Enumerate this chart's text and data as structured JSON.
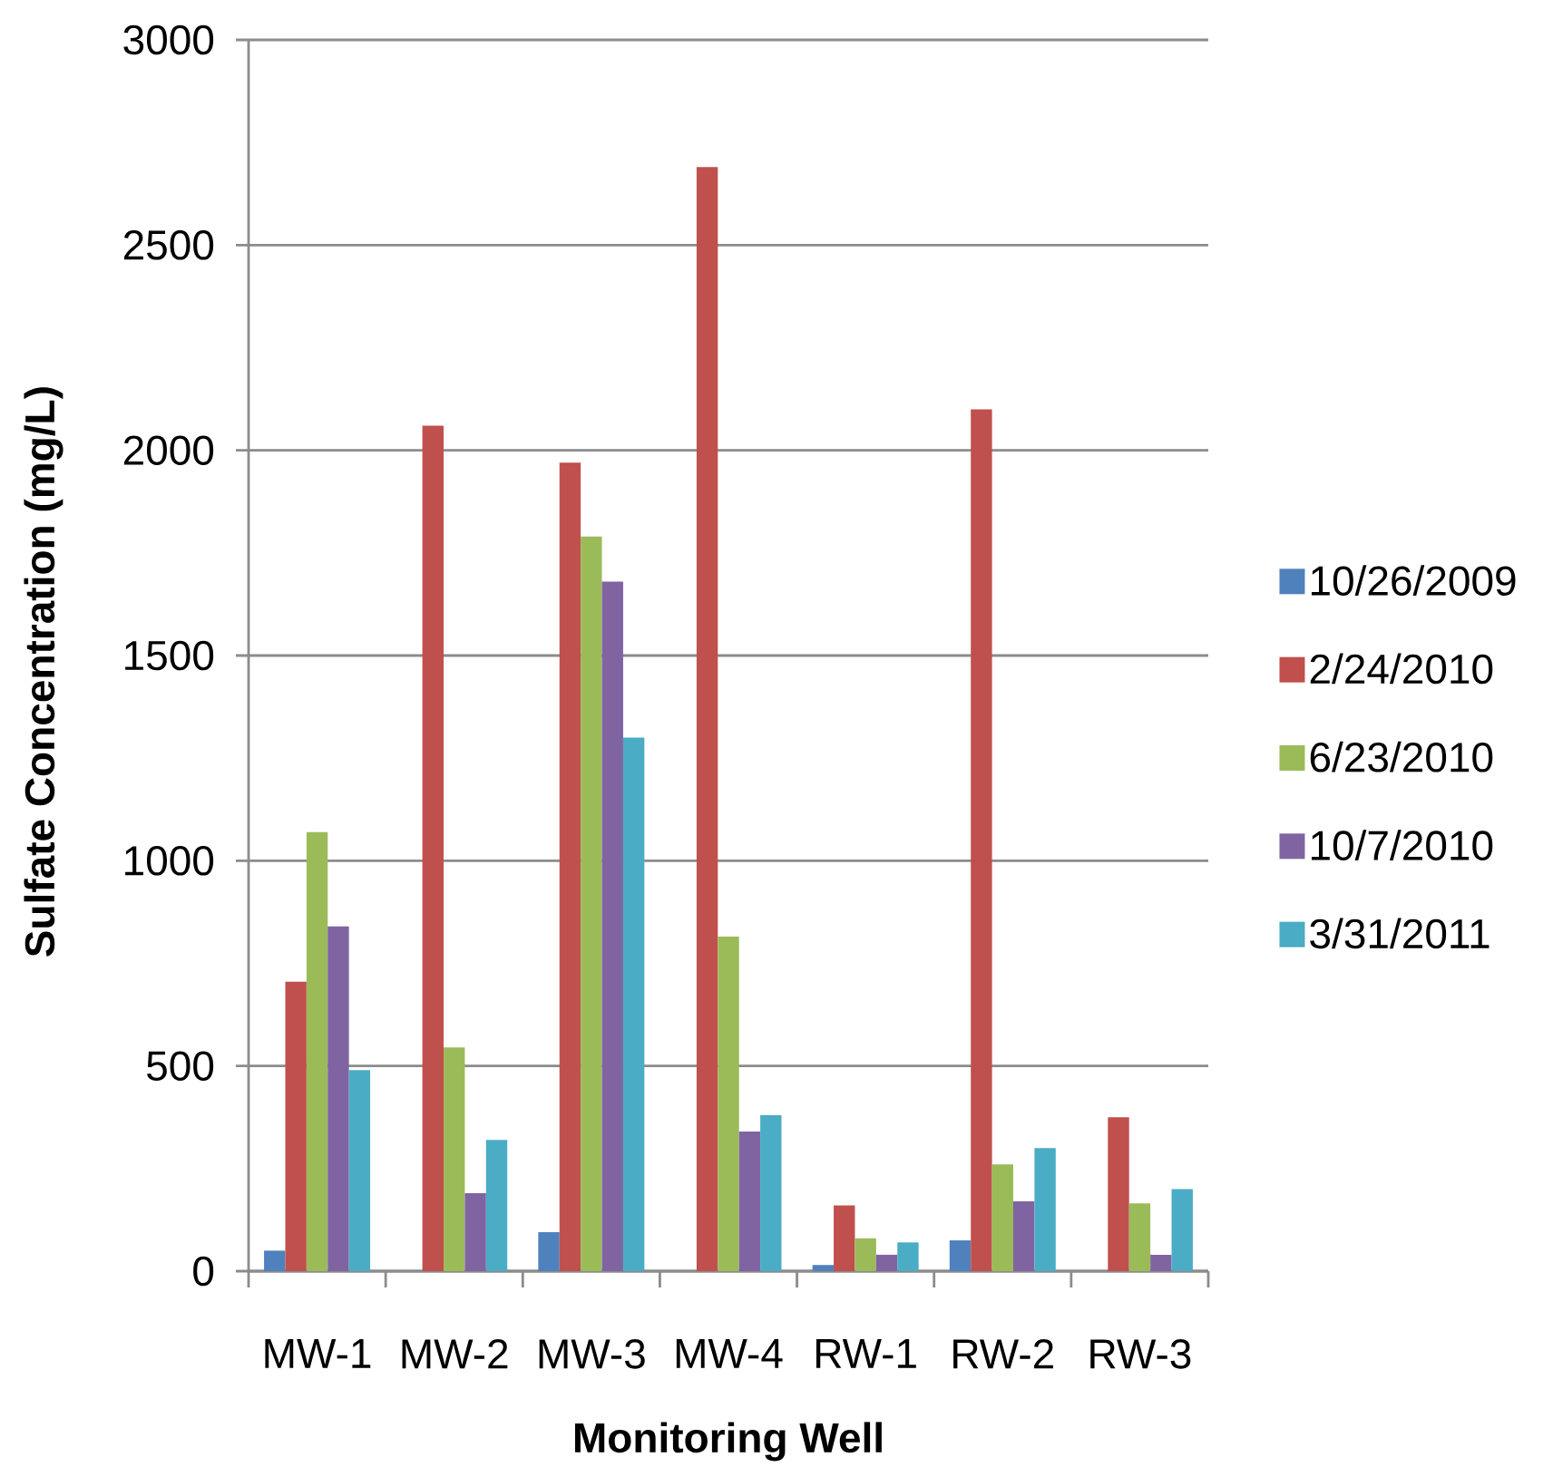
{
  "chart_data": {
    "type": "bar",
    "xlabel": "Monitoring Well",
    "ylabel": "Sulfate Concentration (mg/L)",
    "categories": [
      "MW-1",
      "MW-2",
      "MW-3",
      "MW-4",
      "RW-1",
      "RW-2",
      "RW-3"
    ],
    "series": [
      {
        "name": "10/26/2009",
        "color": "#4f81bd",
        "values": [
          50,
          null,
          95,
          null,
          15,
          75,
          null
        ]
      },
      {
        "name": "2/24/2010",
        "color": "#c0504d",
        "values": [
          705,
          2060,
          1970,
          2690,
          160,
          2100,
          375
        ]
      },
      {
        "name": "6/23/2010",
        "color": "#9bbb59",
        "values": [
          1070,
          545,
          1790,
          815,
          80,
          260,
          165
        ]
      },
      {
        "name": "10/7/2010",
        "color": "#8064a2",
        "values": [
          840,
          190,
          1680,
          340,
          40,
          170,
          40
        ]
      },
      {
        "name": "3/31/2011",
        "color": "#4bacc6",
        "values": [
          490,
          320,
          1300,
          380,
          70,
          300,
          200
        ]
      }
    ],
    "ylim": [
      0,
      3000
    ],
    "yticks": [
      0,
      500,
      1000,
      1500,
      2000,
      2500,
      3000
    ],
    "grid": "y",
    "legend": "right"
  }
}
